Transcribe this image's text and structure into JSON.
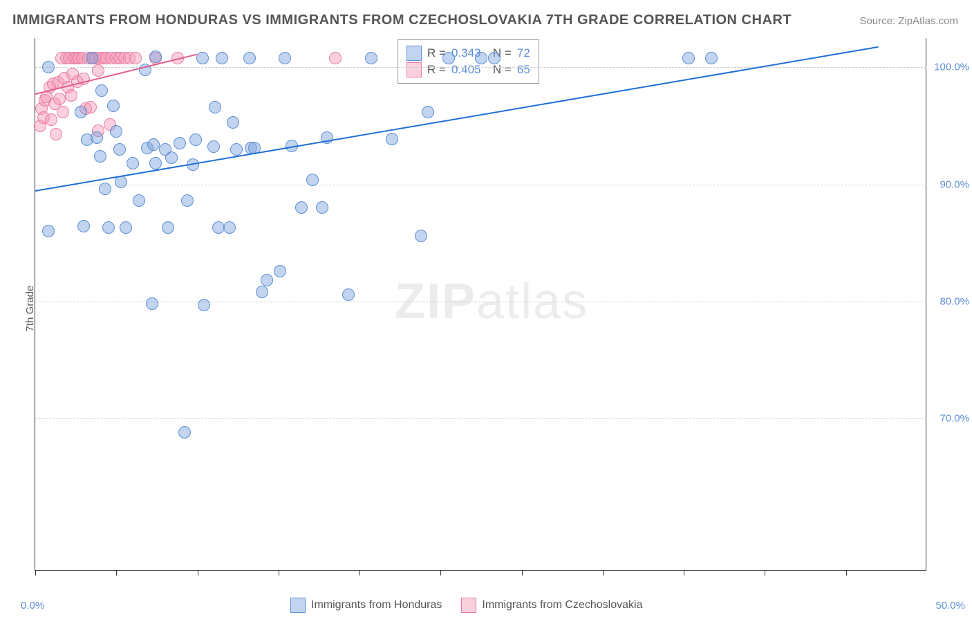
{
  "title": "IMMIGRANTS FROM HONDURAS VS IMMIGRANTS FROM CZECHOSLOVAKIA 7TH GRADE CORRELATION CHART",
  "source": "Source: ZipAtlas.com",
  "watermark": {
    "bold": "ZIP",
    "light": "atlas"
  },
  "yaxis_title": "7th Grade",
  "chart": {
    "type": "scatter",
    "xlim": [
      0,
      55
    ],
    "ylim": [
      57,
      102.5
    ],
    "xtick_labels": {
      "left": "0.0%",
      "right": "50.0%"
    },
    "xtick_positions": [
      0,
      5,
      10,
      15,
      20,
      25,
      30,
      35,
      40,
      45,
      50
    ],
    "ytick_positions": [
      70,
      80,
      90,
      100
    ],
    "ytick_labels": [
      "70.0%",
      "80.0%",
      "90.0%",
      "100.0%"
    ],
    "grid_color": "#cccccc",
    "background_color": "#ffffff",
    "point_radius": 9,
    "series": [
      {
        "name": "Immigrants from Honduras",
        "color_fill": "rgba(120,160,220,0.45)",
        "color_stroke": "#5b8fd6",
        "trend_color": "#1f6fd8",
        "R": "0.343",
        "N": "72",
        "trend": {
          "x1": 0,
          "y1": 89.5,
          "x2": 52,
          "y2": 101.8
        },
        "points": [
          [
            0.8,
            86
          ],
          [
            0.8,
            100
          ],
          [
            2.8,
            96.2
          ],
          [
            3,
            86.4
          ],
          [
            3.2,
            93.8
          ],
          [
            3.5,
            100.8
          ],
          [
            3.8,
            94
          ],
          [
            4,
            92.4
          ],
          [
            4.1,
            98
          ],
          [
            4.3,
            89.6
          ],
          [
            4.5,
            86.3
          ],
          [
            4.8,
            96.7
          ],
          [
            5,
            94.5
          ],
          [
            5.2,
            93
          ],
          [
            5.3,
            90.2
          ],
          [
            5.6,
            86.3
          ],
          [
            6,
            91.8
          ],
          [
            6.4,
            88.6
          ],
          [
            6.8,
            99.8
          ],
          [
            6.9,
            93.1
          ],
          [
            7.3,
            93.4
          ],
          [
            7.4,
            91.8
          ],
          [
            7.2,
            79.8
          ],
          [
            7.4,
            100.9
          ],
          [
            8,
            93
          ],
          [
            8.2,
            86.3
          ],
          [
            8.4,
            92.3
          ],
          [
            8.9,
            93.5
          ],
          [
            9.2,
            68.8
          ],
          [
            9.4,
            88.6
          ],
          [
            9.7,
            91.7
          ],
          [
            9.9,
            93.8
          ],
          [
            10.3,
            100.8
          ],
          [
            10.4,
            79.7
          ],
          [
            11,
            93.2
          ],
          [
            11.1,
            96.6
          ],
          [
            11.3,
            86.3
          ],
          [
            11.5,
            100.8
          ],
          [
            12,
            86.3
          ],
          [
            12.2,
            95.3
          ],
          [
            12.4,
            93
          ],
          [
            13.2,
            100.8
          ],
          [
            13.3,
            93.1
          ],
          [
            13.5,
            93.1
          ],
          [
            14,
            80.8
          ],
          [
            14.3,
            81.8
          ],
          [
            15.1,
            82.6
          ],
          [
            15.4,
            100.8
          ],
          [
            15.8,
            93.3
          ],
          [
            16.4,
            88
          ],
          [
            17.1,
            90.4
          ],
          [
            17.7,
            88
          ],
          [
            18,
            94
          ],
          [
            19.3,
            80.6
          ],
          [
            20.7,
            100.8
          ],
          [
            22,
            93.9
          ],
          [
            23.8,
            85.6
          ],
          [
            24.2,
            96.2
          ],
          [
            25.5,
            100.8
          ],
          [
            27.5,
            100.8
          ],
          [
            28.3,
            100.8
          ],
          [
            40.3,
            100.8
          ],
          [
            41.7,
            100.8
          ]
        ]
      },
      {
        "name": "Immigrants from Czechoslovakia",
        "color_fill": "rgba(245,150,180,0.45)",
        "color_stroke": "#e87da0",
        "trend_color": "#e35d8c",
        "R": "0.405",
        "N": "65",
        "trend": {
          "x1": 0,
          "y1": 97.8,
          "x2": 10,
          "y2": 101.2
        },
        "points": [
          [
            0.3,
            95
          ],
          [
            0.4,
            96.5
          ],
          [
            0.5,
            95.7
          ],
          [
            0.6,
            97.2
          ],
          [
            0.7,
            97.5
          ],
          [
            0.9,
            98.3
          ],
          [
            1.0,
            95.5
          ],
          [
            1.1,
            98.6
          ],
          [
            1.2,
            96.9
          ],
          [
            1.3,
            94.3
          ],
          [
            1.4,
            98.7
          ],
          [
            1.5,
            97.3
          ],
          [
            1.6,
            100.8
          ],
          [
            1.7,
            96.2
          ],
          [
            1.8,
            99.1
          ],
          [
            1.9,
            100.8
          ],
          [
            2.0,
            98.3
          ],
          [
            2.1,
            100.8
          ],
          [
            2.2,
            97.6
          ],
          [
            2.3,
            99.4
          ],
          [
            2.4,
            100.8
          ],
          [
            2.5,
            100.8
          ],
          [
            2.6,
            98.8
          ],
          [
            2.7,
            100.8
          ],
          [
            2.9,
            100.8
          ],
          [
            3.0,
            99
          ],
          [
            3.1,
            96.5
          ],
          [
            3.3,
            100.8
          ],
          [
            3.4,
            96.6
          ],
          [
            3.6,
            100.8
          ],
          [
            3.7,
            100.8
          ],
          [
            3.9,
            99.7
          ],
          [
            3.9,
            94.6
          ],
          [
            4.0,
            100.8
          ],
          [
            4.2,
            100.8
          ],
          [
            4.4,
            100.8
          ],
          [
            4.6,
            95.1
          ],
          [
            4.7,
            100.8
          ],
          [
            5.0,
            100.8
          ],
          [
            5.2,
            100.8
          ],
          [
            5.5,
            100.8
          ],
          [
            5.8,
            100.8
          ],
          [
            6.2,
            100.8
          ],
          [
            7.4,
            100.8
          ],
          [
            8.8,
            100.8
          ],
          [
            18.5,
            100.8
          ]
        ]
      }
    ]
  },
  "legend_bottom": [
    {
      "label": "Immigrants from Honduras",
      "fill": "rgba(120,160,220,0.45)",
      "stroke": "#5b8fd6"
    },
    {
      "label": "Immigrants from Czechoslovakia",
      "fill": "rgba(245,150,180,0.45)",
      "stroke": "#e87da0"
    }
  ]
}
